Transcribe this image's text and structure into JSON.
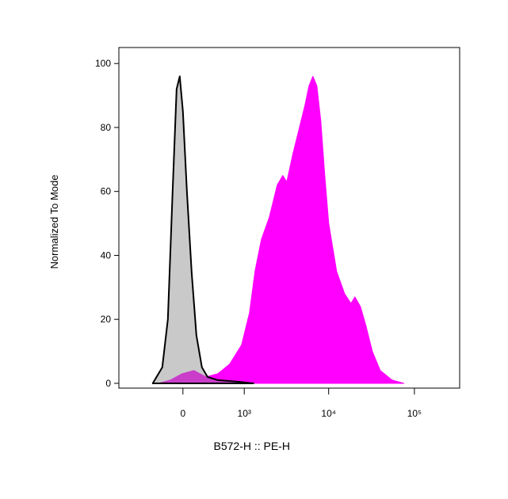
{
  "chart_data": {
    "type": "area",
    "xlabel": "B572-H :: PE-H",
    "ylabel": "Normalized To Mode",
    "xscale": "biexponential",
    "xlim": [
      -1080,
      337000
    ],
    "xticks": [
      0,
      {
        "value": 1000,
        "label": "10³"
      },
      {
        "value": 10000,
        "label": "10⁴"
      },
      {
        "value": 100000,
        "label": "10⁵"
      }
    ],
    "ylim": [
      -1.5,
      105
    ],
    "yticks": [
      0,
      20,
      40,
      60,
      80,
      100
    ],
    "series": [
      {
        "color": "#ff00ff",
        "x": [
          -284,
          -139,
          -9,
          121,
          263,
          432,
          643,
          924,
          1160,
          1356,
          1620,
          2016,
          2500,
          2908,
          3236,
          3840,
          4556,
          5292,
          5888,
          6548,
          7288,
          8104,
          9012,
          10020,
          12400,
          15360,
          18200,
          20240,
          23480,
          27240,
          32320,
          40000,
          55040,
          75600
        ],
        "values": [
          0,
          1,
          3,
          4,
          2,
          3,
          6,
          12,
          22,
          35,
          45,
          52,
          62,
          65,
          63,
          72,
          80,
          87,
          93,
          96,
          93,
          82,
          65,
          50,
          35,
          28,
          25,
          27,
          24,
          18,
          10,
          4,
          1,
          0
        ]
      },
      {
        "color": "#888888",
        "x": [
          -360,
          -233,
          -166,
          -112,
          -68,
          -34,
          0,
          43,
          94,
          148,
          213,
          284,
          432,
          822,
          1300
        ],
        "values": [
          0,
          5,
          20,
          60,
          92,
          96,
          85,
          60,
          35,
          15,
          5,
          2,
          1,
          0.5,
          0
        ]
      }
    ]
  }
}
